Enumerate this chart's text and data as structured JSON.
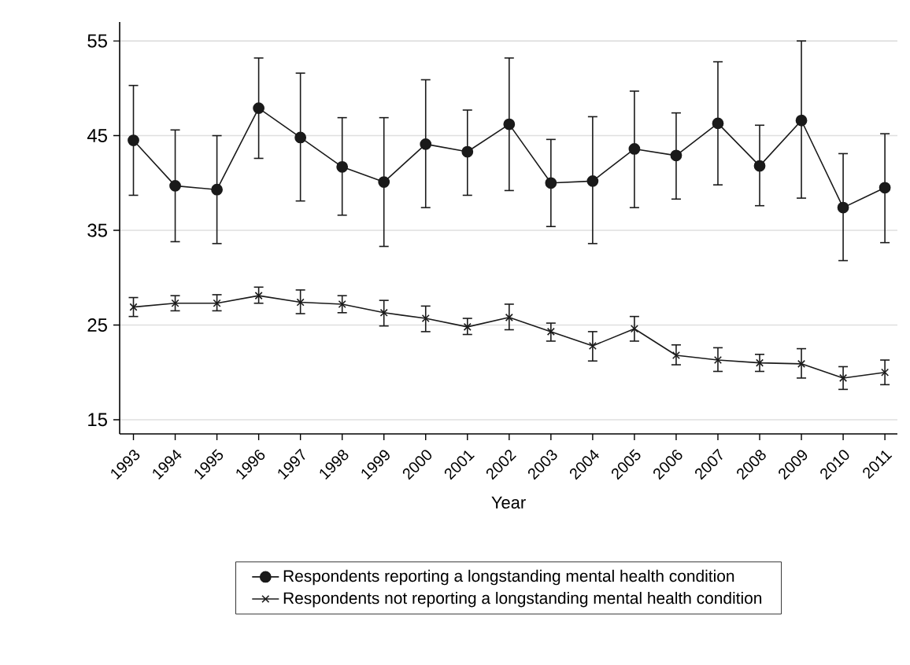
{
  "chart_data": {
    "type": "line",
    "xlabel": "Year",
    "categories": [
      "1993",
      "1994",
      "1995",
      "1996",
      "1997",
      "1998",
      "1999",
      "2000",
      "2001",
      "2002",
      "2003",
      "2004",
      "2005",
      "2006",
      "2007",
      "2008",
      "2009",
      "2010",
      "2011"
    ],
    "series": [
      {
        "name": "Respondents reporting a longstanding mental health condition",
        "color": "#1a1a1a",
        "marker": "circle",
        "values": [
          44.5,
          39.7,
          39.3,
          47.9,
          44.8,
          41.7,
          40.1,
          44.1,
          43.3,
          46.2,
          40.0,
          40.2,
          43.6,
          42.9,
          46.3,
          41.8,
          46.6,
          37.4,
          39.5
        ],
        "errors": [
          [
            38.7,
            50.3
          ],
          [
            33.8,
            45.6
          ],
          [
            33.6,
            45.0
          ],
          [
            42.6,
            53.2
          ],
          [
            38.1,
            51.6
          ],
          [
            36.6,
            46.9
          ],
          [
            33.3,
            46.9
          ],
          [
            37.4,
            50.9
          ],
          [
            38.7,
            47.7
          ],
          [
            39.2,
            53.2
          ],
          [
            35.4,
            44.6
          ],
          [
            33.6,
            47.0
          ],
          [
            37.4,
            49.7
          ],
          [
            38.3,
            47.4
          ],
          [
            39.8,
            52.8
          ],
          [
            37.6,
            46.1
          ],
          [
            38.4,
            55.0
          ],
          [
            31.8,
            43.1
          ],
          [
            33.7,
            45.2
          ]
        ]
      },
      {
        "name": "Respondents not reporting a longstanding mental health condition",
        "color": "#1a1a1a",
        "marker": "cross",
        "values": [
          26.9,
          27.3,
          27.3,
          28.1,
          27.4,
          27.2,
          26.3,
          25.7,
          24.8,
          25.8,
          24.3,
          22.8,
          24.6,
          21.8,
          21.3,
          21.0,
          20.9,
          19.4,
          20.0
        ],
        "errors": [
          [
            25.9,
            27.9
          ],
          [
            26.5,
            28.1
          ],
          [
            26.5,
            28.2
          ],
          [
            27.3,
            29.0
          ],
          [
            26.2,
            28.7
          ],
          [
            26.3,
            28.1
          ],
          [
            24.9,
            27.6
          ],
          [
            24.3,
            27.0
          ],
          [
            24.0,
            25.7
          ],
          [
            24.5,
            27.2
          ],
          [
            23.3,
            25.2
          ],
          [
            21.2,
            24.3
          ],
          [
            23.3,
            25.9
          ],
          [
            20.8,
            22.9
          ],
          [
            20.1,
            22.6
          ],
          [
            20.1,
            21.9
          ],
          [
            19.4,
            22.5
          ],
          [
            18.2,
            20.6
          ],
          [
            18.7,
            21.3
          ]
        ]
      }
    ],
    "ylim": [
      13.5,
      57
    ],
    "yticks": [
      15,
      25,
      35,
      45,
      55
    ],
    "grid": "y",
    "legend": "bottom",
    "line_style": "solid"
  }
}
